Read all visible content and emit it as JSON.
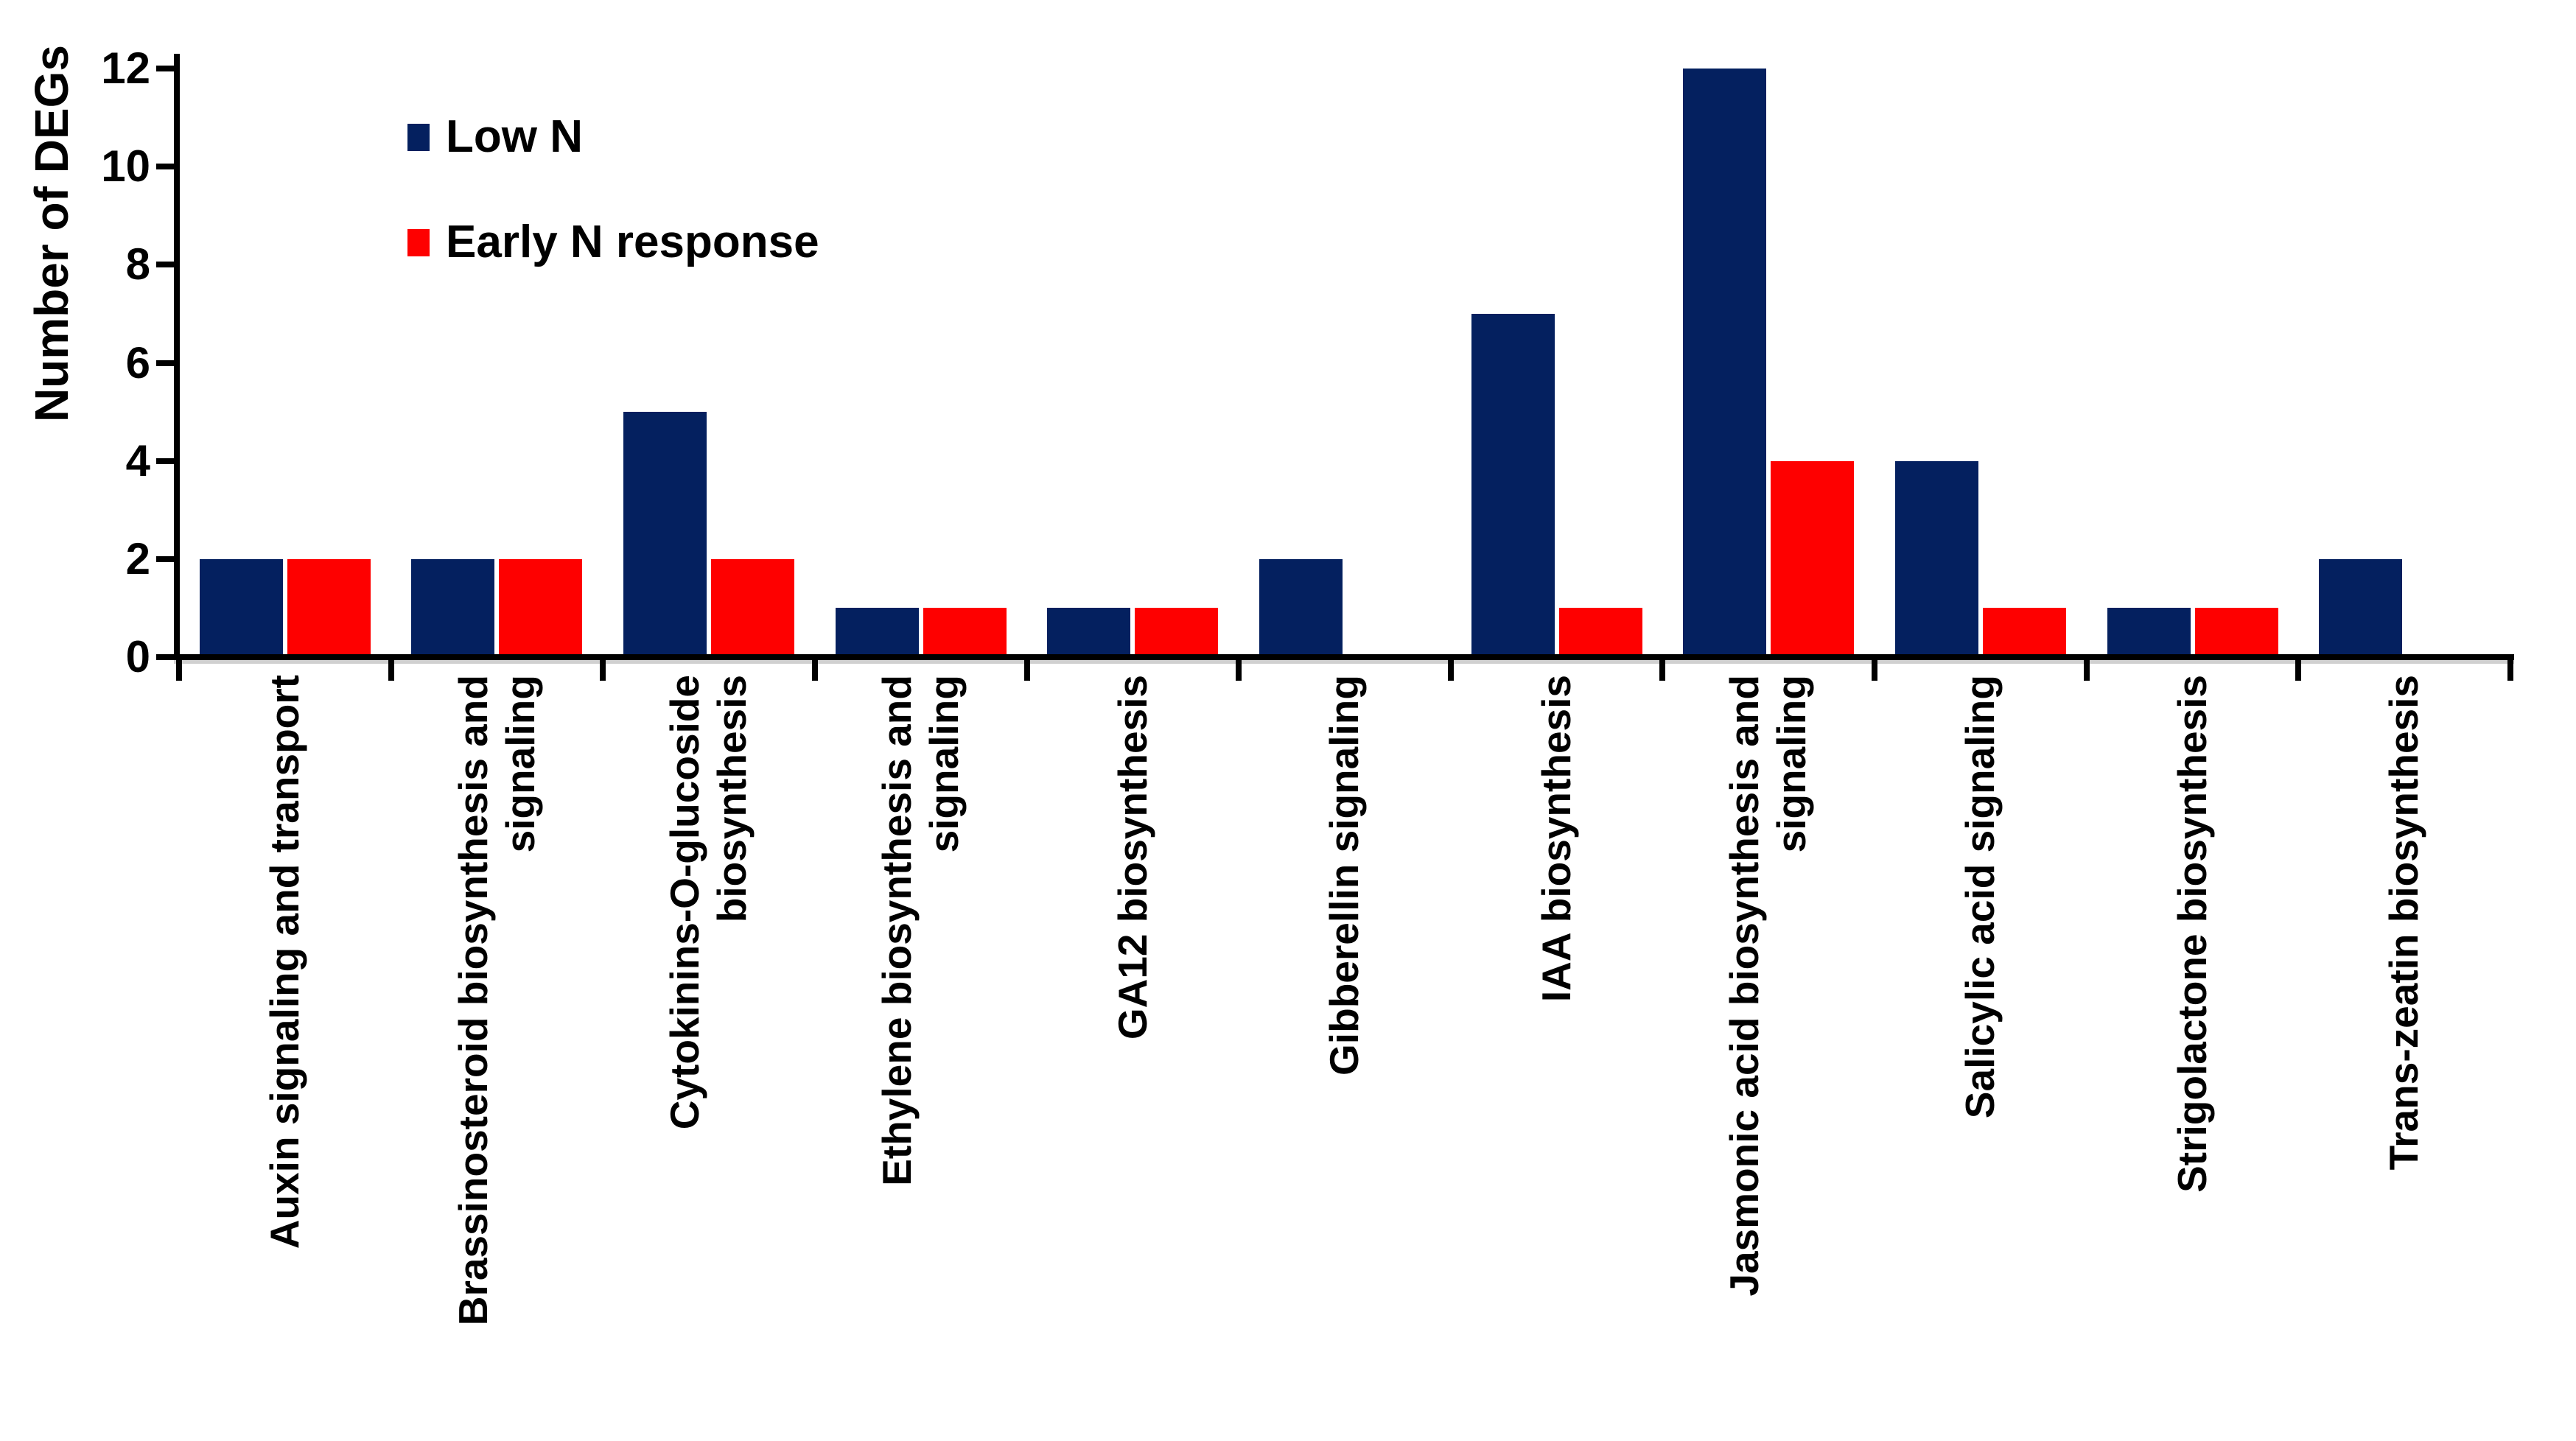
{
  "figure": {
    "background": "#FFFFFF"
  },
  "chart_data": {
    "type": "bar",
    "title": "",
    "xlabel": "",
    "ylabel": "Number of DEGs",
    "categories": [
      "Auxin signaling and transport",
      "Brassinosteroid biosynthesis and\nsignaling",
      "Cytokinins-O-glucoside\nbiosynthesis",
      "Ethylene biosynthesis and\nsignaling",
      "GA12 biosynthesis",
      "Gibberellin signaling",
      "IAA biosynthesis",
      "Jasmonic acid biosynthesis and\nsignaling",
      "Salicylic acid signaling",
      "Strigolactone biosynthesis",
      "Trans-zeatin biosynthesis"
    ],
    "series": [
      {
        "name": "Low N",
        "color": "#04205F",
        "values": [
          2,
          2,
          5,
          1,
          1,
          2,
          7,
          12,
          4,
          1,
          2
        ]
      },
      {
        "name": "Early N response",
        "color": "#FE0000",
        "values": [
          2,
          2,
          2,
          1,
          1,
          0,
          1,
          4,
          1,
          1,
          0
        ]
      }
    ],
    "y_ticks": [
      0,
      2,
      4,
      6,
      8,
      10,
      12
    ],
    "y_tick_labels": [
      "0",
      "2",
      "4",
      "6",
      "8",
      "10",
      "12"
    ],
    "ylim": [
      0,
      12
    ],
    "grid": false,
    "legend_position": "inside-top-left",
    "axis_color": "#000000"
  }
}
